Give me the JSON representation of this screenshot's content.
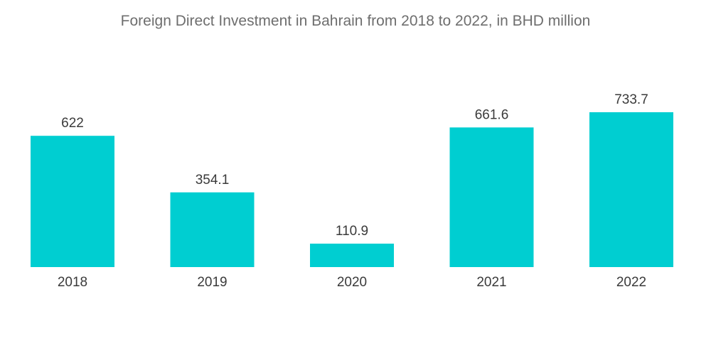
{
  "chart_data": {
    "type": "bar",
    "title": "Foreign Direct Investment in Bahrain from 2018 to 2022, in BHD million",
    "categories": [
      "2018",
      "2019",
      "2020",
      "2021",
      "2022"
    ],
    "values": [
      622,
      354.1,
      110.9,
      661.6,
      733.7
    ],
    "data_labels": [
      "622",
      "354.1",
      "110.9",
      "661.6",
      "733.7"
    ],
    "xlabel": "",
    "ylabel": "",
    "ylim": [
      0,
      733.7
    ],
    "grid": false,
    "legend": "none",
    "bar_color": "#00ced1"
  }
}
